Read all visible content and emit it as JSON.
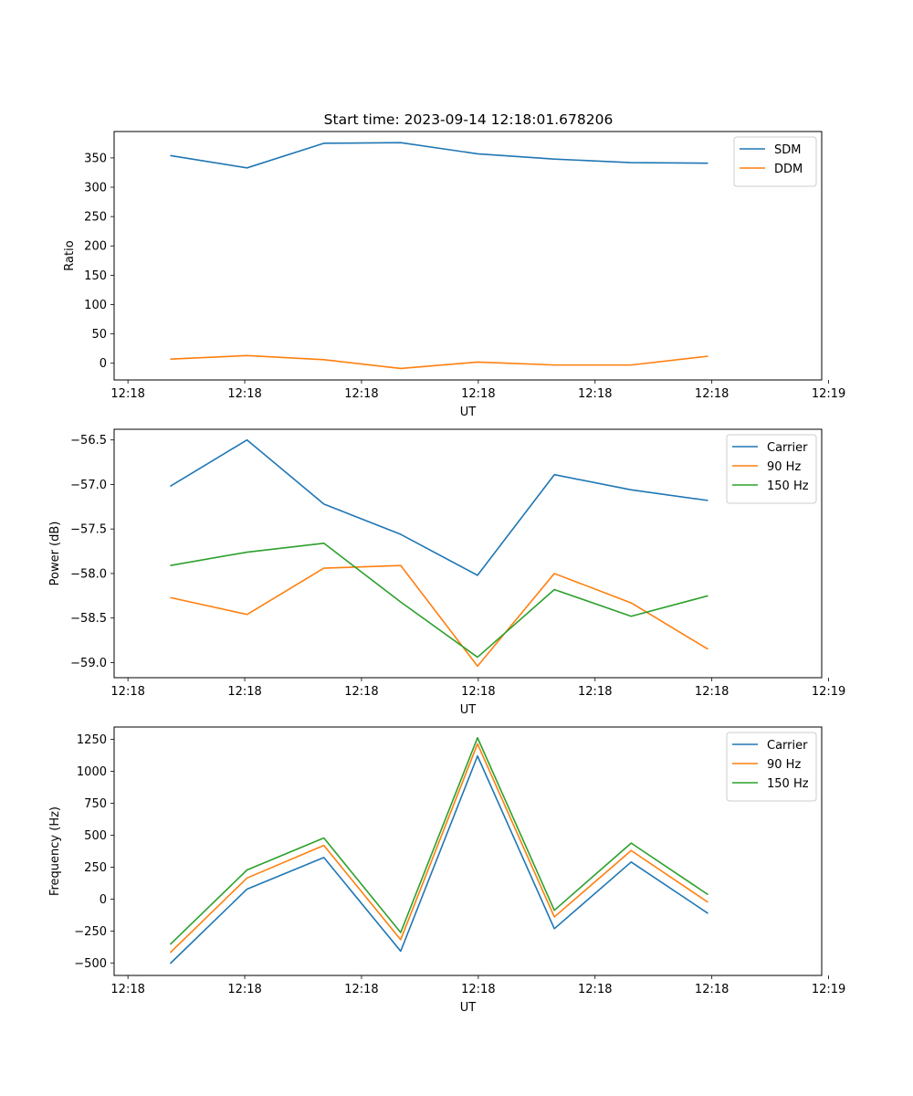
{
  "figure_title": "Start time: 2023-09-14 12:18:01.678206",
  "colors": {
    "c0": "#1f77b4",
    "c1": "#ff7f0e",
    "c2": "#2ca02c"
  },
  "chart_data": [
    {
      "type": "line",
      "title": "Start time: 2023-09-14 12:18:01.678206",
      "xlabel": "UT",
      "ylabel": "Ratio",
      "x": [
        1,
        2,
        3,
        4,
        5,
        6,
        7,
        8
      ],
      "xlim": [
        0.27,
        9.48
      ],
      "xticks": [
        0.45,
        1.97,
        3.49,
        5.01,
        6.53,
        8.05,
        9.57
      ],
      "xticklabels": [
        "12:18",
        "12:18",
        "12:18",
        "12:18",
        "12:18",
        "12:18",
        "12:19"
      ],
      "ylim": [
        -28.5,
        395
      ],
      "yticks": [
        0,
        50,
        100,
        150,
        200,
        250,
        300,
        350
      ],
      "yticklabels": [
        "0",
        "50",
        "100",
        "150",
        "200",
        "250",
        "300",
        "350"
      ],
      "legend_position": "top-right",
      "series": [
        {
          "name": "SDM",
          "color": "#1f77b4",
          "values": [
            354,
            333,
            375,
            376,
            357,
            348,
            342,
            341
          ]
        },
        {
          "name": "DDM",
          "color": "#ff7f0e",
          "values": [
            7,
            13,
            6,
            -9,
            2,
            -3,
            -3,
            12
          ]
        }
      ]
    },
    {
      "type": "line",
      "title": "",
      "xlabel": "UT",
      "ylabel": "Power (dB)",
      "x": [
        1,
        2,
        3,
        4,
        5,
        6,
        7,
        8
      ],
      "xlim": [
        0.27,
        9.48
      ],
      "xticks": [
        0.45,
        1.97,
        3.49,
        5.01,
        6.53,
        8.05,
        9.57
      ],
      "xticklabels": [
        "12:18",
        "12:18",
        "12:18",
        "12:18",
        "12:18",
        "12:18",
        "12:19"
      ],
      "ylim": [
        -59.17,
        -56.38
      ],
      "yticks": [
        -56.5,
        -57.0,
        -57.5,
        -58.0,
        -58.5,
        -59.0
      ],
      "yticklabels": [
        "−56.5",
        "−57.0",
        "−57.5",
        "−58.0",
        "−58.5",
        "−59.0"
      ],
      "legend_position": "top-right",
      "series": [
        {
          "name": "Carrier",
          "color": "#1f77b4",
          "values": [
            -57.02,
            -56.5,
            -57.22,
            -57.56,
            -58.02,
            -56.89,
            -57.06,
            -57.18
          ]
        },
        {
          "name": "90 Hz",
          "color": "#ff7f0e",
          "values": [
            -58.27,
            -58.46,
            -57.94,
            -57.91,
            -59.04,
            -58.0,
            -58.33,
            -58.85
          ]
        },
        {
          "name": "150 Hz",
          "color": "#2ca02c",
          "values": [
            -57.91,
            -57.76,
            -57.66,
            -58.32,
            -58.94,
            -58.18,
            -58.48,
            -58.25
          ]
        }
      ]
    },
    {
      "type": "line",
      "title": "",
      "xlabel": "UT",
      "ylabel": "Frequency (Hz)",
      "x": [
        1,
        2,
        3,
        4,
        5,
        6,
        7,
        8
      ],
      "xlim": [
        0.27,
        9.48
      ],
      "xticks": [
        0.45,
        1.97,
        3.49,
        5.01,
        6.53,
        8.05,
        9.57
      ],
      "xticklabels": [
        "12:18",
        "12:18",
        "12:18",
        "12:18",
        "12:18",
        "12:18",
        "12:19"
      ],
      "ylim": [
        -598,
        1347
      ],
      "yticks": [
        -500,
        -250,
        0,
        250,
        500,
        750,
        1000,
        1250
      ],
      "yticklabels": [
        "−500",
        "−250",
        "0",
        "250",
        "500",
        "750",
        "1000",
        "1250"
      ],
      "legend_position": "top-right",
      "series": [
        {
          "name": "Carrier",
          "color": "#1f77b4",
          "values": [
            -505,
            78,
            325,
            -408,
            1120,
            -232,
            290,
            -112
          ]
        },
        {
          "name": "90 Hz",
          "color": "#ff7f0e",
          "values": [
            -420,
            165,
            420,
            -318,
            1215,
            -140,
            380,
            -25
          ]
        },
        {
          "name": "150 Hz",
          "color": "#2ca02c",
          "values": [
            -355,
            228,
            478,
            -262,
            1263,
            -88,
            438,
            35
          ]
        }
      ]
    }
  ]
}
